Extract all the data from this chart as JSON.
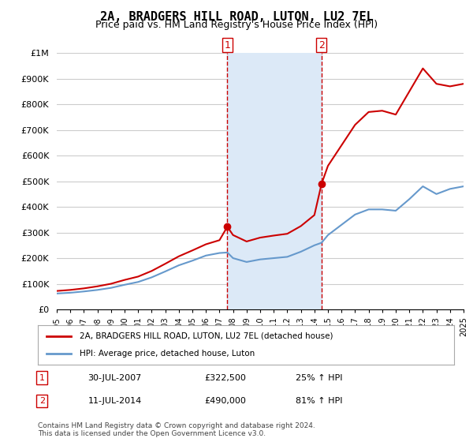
{
  "title": "2A, BRADGERS HILL ROAD, LUTON, LU2 7EL",
  "subtitle": "Price paid vs. HM Land Registry's House Price Index (HPI)",
  "background_color": "#ffffff",
  "plot_bg_color": "#ffffff",
  "grid_color": "#cccccc",
  "shaded_region_color": "#dce9f7",
  "ylim": [
    0,
    1000000
  ],
  "yticks": [
    0,
    100000,
    200000,
    300000,
    400000,
    500000,
    600000,
    700000,
    800000,
    900000,
    1000000
  ],
  "ytick_labels": [
    "£0",
    "£100K",
    "£200K",
    "£300K",
    "£400K",
    "£500K",
    "£600K",
    "£700K",
    "£800K",
    "£900K",
    "£1M"
  ],
  "hpi_color": "#6699cc",
  "price_color": "#cc0000",
  "sale1_date": 2007.58,
  "sale1_price": 322500,
  "sale1_label": "1",
  "sale2_date": 2014.53,
  "sale2_price": 490000,
  "sale2_label": "2",
  "shaded_x_start": 2007.58,
  "shaded_x_end": 2014.53,
  "legend_label_price": "2A, BRADGERS HILL ROAD, LUTON, LU2 7EL (detached house)",
  "legend_label_hpi": "HPI: Average price, detached house, Luton",
  "annotation1_date": "30-JUL-2007",
  "annotation1_price": "£322,500",
  "annotation1_hpi": "25% ↑ HPI",
  "annotation2_date": "11-JUL-2014",
  "annotation2_price": "£490,000",
  "annotation2_hpi": "81% ↑ HPI",
  "footnote": "Contains HM Land Registry data © Crown copyright and database right 2024.\nThis data is licensed under the Open Government Licence v3.0.",
  "hpi_years": [
    1995,
    1996,
    1997,
    1998,
    1999,
    2000,
    2001,
    2002,
    2003,
    2004,
    2005,
    2006,
    2007,
    2007.58,
    2008,
    2009,
    2010,
    2011,
    2012,
    2013,
    2014,
    2014.53,
    2015,
    2016,
    2017,
    2018,
    2019,
    2020,
    2021,
    2022,
    2023,
    2024,
    2025
  ],
  "hpi_values": [
    62000,
    65000,
    70000,
    76000,
    84000,
    96000,
    107000,
    125000,
    148000,
    172000,
    190000,
    210000,
    220000,
    222000,
    200000,
    185000,
    195000,
    200000,
    205000,
    225000,
    250000,
    260000,
    290000,
    330000,
    370000,
    390000,
    390000,
    385000,
    430000,
    480000,
    450000,
    470000,
    480000
  ],
  "price_years": [
    1995,
    1996,
    1997,
    1998,
    1999,
    2000,
    2001,
    2002,
    2003,
    2004,
    2005,
    2006,
    2007,
    2007.58,
    2008,
    2009,
    2010,
    2011,
    2012,
    2013,
    2014,
    2014.53,
    2015,
    2016,
    2017,
    2018,
    2019,
    2020,
    2021,
    2022,
    2023,
    2024,
    2025
  ],
  "price_values": [
    72000,
    76000,
    82000,
    90000,
    100000,
    115000,
    128000,
    150000,
    178000,
    207000,
    230000,
    254000,
    270000,
    322500,
    290000,
    265000,
    280000,
    288000,
    295000,
    325000,
    368000,
    490000,
    560000,
    640000,
    720000,
    770000,
    775000,
    760000,
    850000,
    940000,
    880000,
    870000,
    880000
  ],
  "xmin": 1995,
  "xmax": 2025
}
